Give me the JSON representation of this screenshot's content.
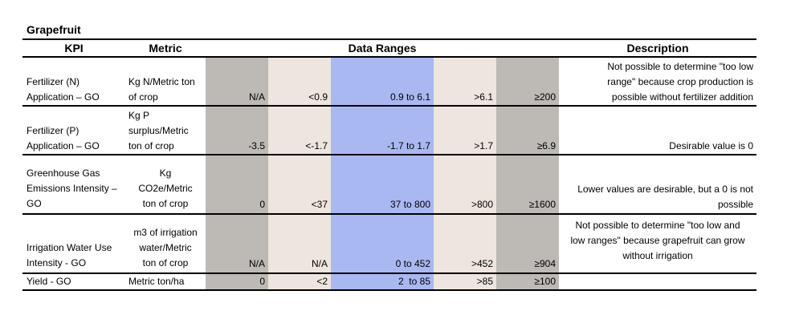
{
  "title": "Grapefruit",
  "headers": {
    "kpi": "KPI",
    "metric": "Metric",
    "ranges": "Data Ranges",
    "description": "Description"
  },
  "colors": {
    "dark": "#bdb9b4",
    "light": "#ede5de",
    "blue": "#a9b8f1"
  },
  "rows": [
    {
      "kpi": [
        "Fertilizer (N)",
        "Application – GO"
      ],
      "metric": [
        "Kg N/Metric ton",
        "of crop"
      ],
      "values": [
        "N/A",
        "<0.9",
        "0.9 to 6.1",
        ">6.1",
        "≥200"
      ],
      "description": [
        "Not possible to determine \"too low",
        "range\" because crop production is",
        "possible without fertilizer addition"
      ]
    },
    {
      "kpi": [
        "Fertilizer (P)",
        "Application – GO"
      ],
      "metric": [
        "Kg P",
        "surplus/Metric",
        "ton of crop"
      ],
      "values": [
        "-3.5",
        "<-1.7",
        "-1.7 to 1.7",
        ">1.7",
        "≥6.9"
      ],
      "description": [
        "Desirable value is 0"
      ]
    },
    {
      "kpi": [
        "Greenhouse Gas",
        "Emissions Intensity –",
        "GO"
      ],
      "metric": [
        "Kg",
        "CO2e/Metric",
        "ton of crop"
      ],
      "values": [
        "0",
        "<37",
        "37 to 800",
        ">800",
        "≥1600"
      ],
      "description": [
        "Lower values are desirable, but a 0 is not",
        "possible"
      ]
    },
    {
      "kpi": [
        "Irrigation Water Use",
        "Intensity - GO"
      ],
      "metric": [
        "m3 of irrigation",
        "water/Metric",
        "ton of crop"
      ],
      "values": [
        "N/A",
        "N/A",
        "0 to 452",
        ">452",
        "≥904"
      ],
      "description": [
        "Not possible to determine \"too low and",
        "low ranges\" because grapefruit can grow",
        "without irrigation"
      ]
    },
    {
      "kpi": [
        "Yield - GO"
      ],
      "metric": [
        "Metric ton/ha"
      ],
      "values": [
        "0",
        "<2",
        "2  to 85",
        ">85",
        "≥100"
      ],
      "description": []
    }
  ]
}
